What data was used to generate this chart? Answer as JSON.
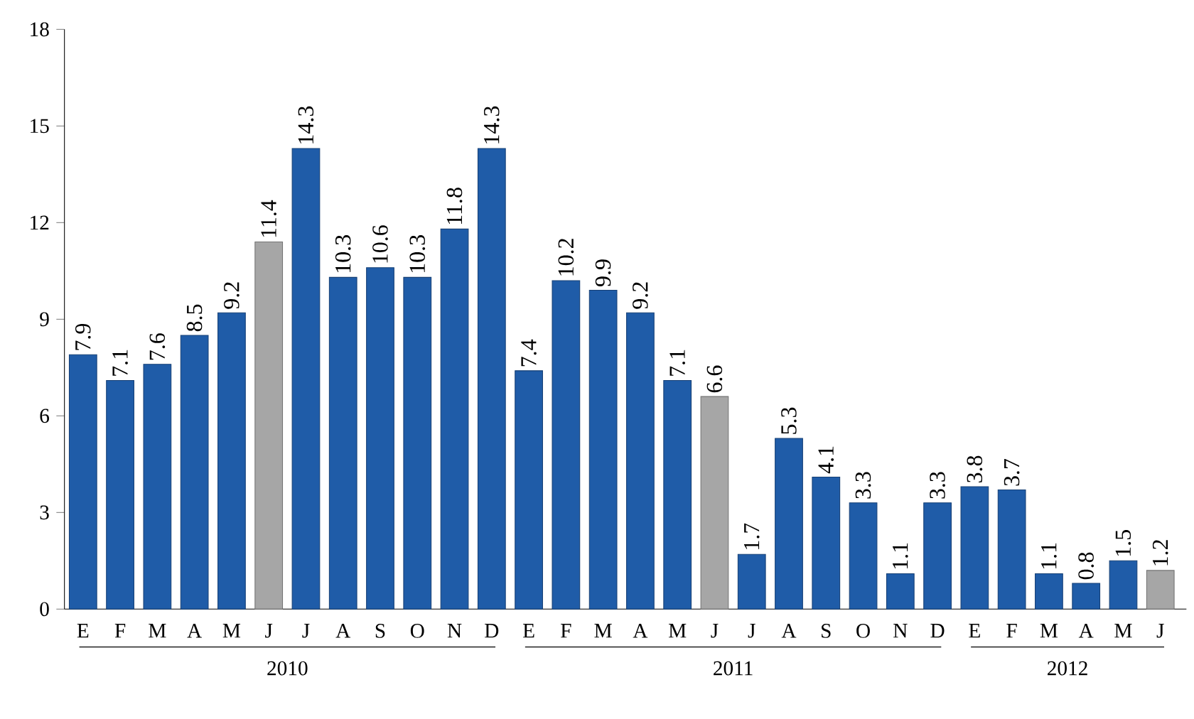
{
  "chart_data": {
    "type": "bar",
    "categories": [
      "E",
      "F",
      "M",
      "A",
      "M",
      "J",
      "J",
      "A",
      "S",
      "O",
      "N",
      "D",
      "E",
      "F",
      "M",
      "A",
      "M",
      "J",
      "J",
      "A",
      "S",
      "O",
      "N",
      "D",
      "E",
      "F",
      "M",
      "A",
      "M",
      "J"
    ],
    "values": [
      7.9,
      7.1,
      7.6,
      8.5,
      9.2,
      11.4,
      14.3,
      10.3,
      10.6,
      10.3,
      11.8,
      14.3,
      7.4,
      10.2,
      9.9,
      9.2,
      7.1,
      6.6,
      1.7,
      5.3,
      4.1,
      3.3,
      1.1,
      3.3,
      3.8,
      3.7,
      1.1,
      0.8,
      1.5,
      1.2
    ],
    "colors": [
      "#1f5ca8",
      "#1f5ca8",
      "#1f5ca8",
      "#1f5ca8",
      "#1f5ca8",
      "#a6a6a6",
      "#1f5ca8",
      "#1f5ca8",
      "#1f5ca8",
      "#1f5ca8",
      "#1f5ca8",
      "#1f5ca8",
      "#1f5ca8",
      "#1f5ca8",
      "#1f5ca8",
      "#1f5ca8",
      "#1f5ca8",
      "#a6a6a6",
      "#1f5ca8",
      "#1f5ca8",
      "#1f5ca8",
      "#1f5ca8",
      "#1f5ca8",
      "#1f5ca8",
      "#1f5ca8",
      "#1f5ca8",
      "#1f5ca8",
      "#1f5ca8",
      "#1f5ca8",
      "#a6a6a6"
    ],
    "ylim": [
      0,
      18
    ],
    "yticks": [
      0,
      3,
      6,
      9,
      12,
      15,
      18
    ],
    "data_labels": true,
    "grid": false,
    "annotations": [
      "2010",
      "2011",
      "2012"
    ]
  }
}
